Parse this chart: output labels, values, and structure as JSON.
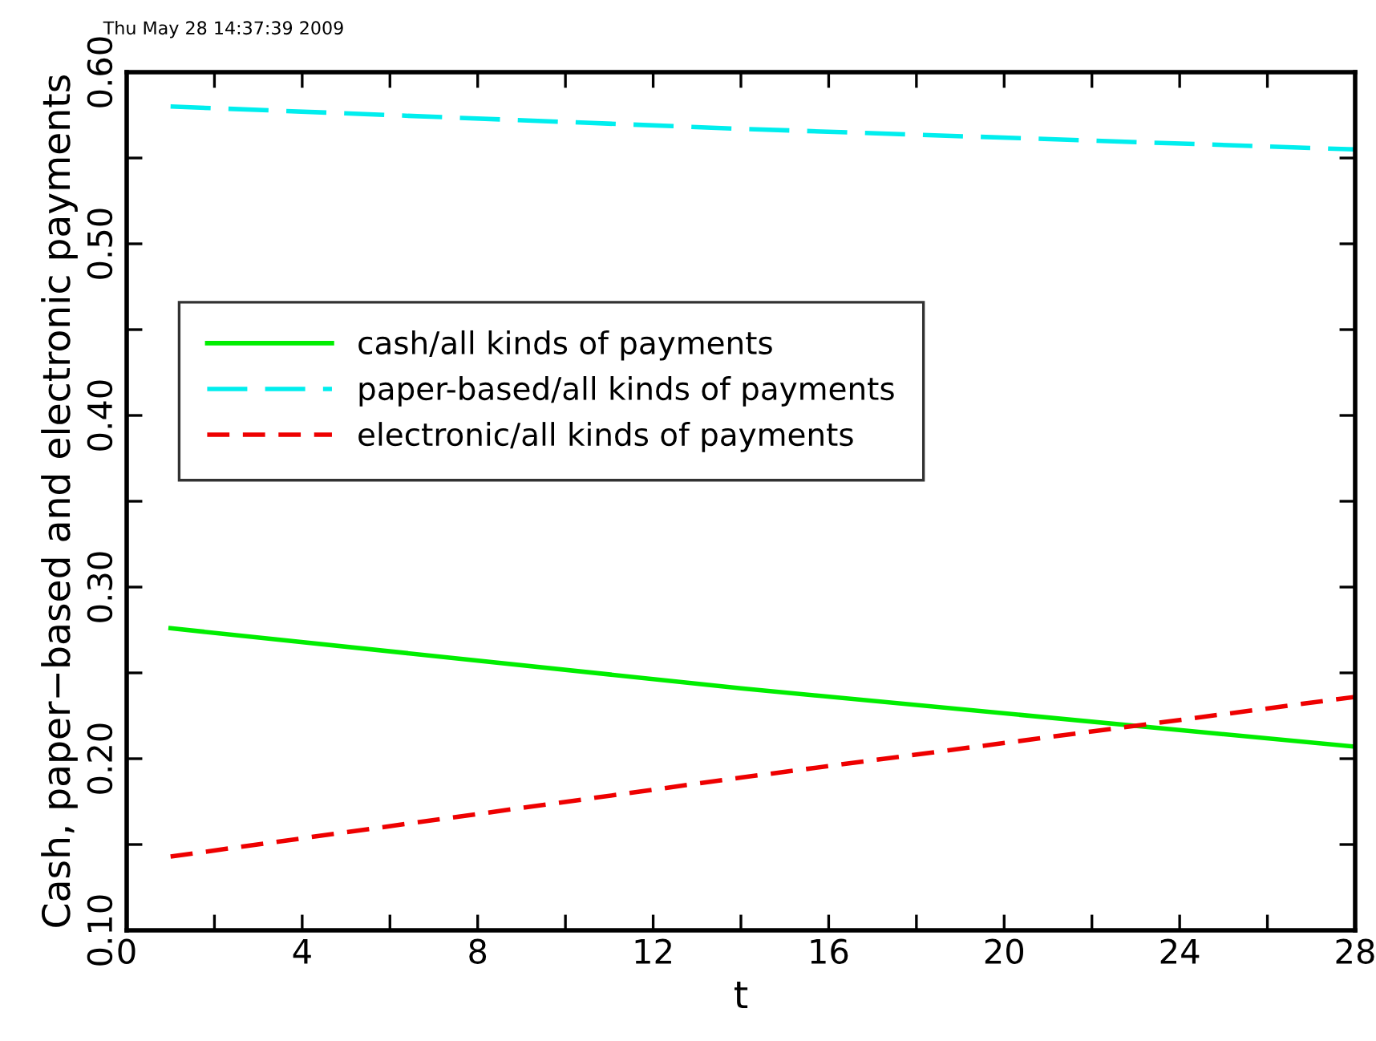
{
  "chart_data": {
    "type": "line",
    "xlabel": "t",
    "ylabel": "Cash, paper−based and electronic payments",
    "annotations": [
      "Thu May 28 14:37:39 2009"
    ],
    "xlim": [
      0,
      28
    ],
    "ylim": [
      0.1,
      0.6
    ],
    "xticks": [
      0,
      {
        "value": 2,
        "label": null
      },
      4,
      {
        "value": 6,
        "label": null
      },
      8,
      {
        "value": 10,
        "label": null
      },
      12,
      {
        "value": 14,
        "label": null
      },
      16,
      {
        "value": 18,
        "label": null
      },
      20,
      {
        "value": 22,
        "label": null
      },
      24,
      {
        "value": 26,
        "label": null
      },
      28
    ],
    "yticks": [
      {
        "value": 0.1,
        "label": "0.10"
      },
      {
        "value": 0.15,
        "label": null
      },
      {
        "value": 0.2,
        "label": "0.20"
      },
      {
        "value": 0.25,
        "label": null
      },
      {
        "value": 0.3,
        "label": "0.30"
      },
      {
        "value": 0.35,
        "label": null
      },
      {
        "value": 0.4,
        "label": "0.40"
      },
      {
        "value": 0.45,
        "label": null
      },
      {
        "value": 0.5,
        "label": "0.50"
      },
      {
        "value": 0.55,
        "label": null
      },
      {
        "value": 0.6,
        "label": "0.60"
      }
    ],
    "legend": "upper left",
    "grid": false,
    "series": [
      {
        "name": "cash/all kinds of payments",
        "color": "#00ee00",
        "line_style": "solid",
        "x": [
          1,
          14,
          28
        ],
        "values": [
          0.276,
          0.241,
          0.207
        ]
      },
      {
        "name": "paper-based/all kinds of payments",
        "color": "#00eeee",
        "line_style": "longdash",
        "x": [
          1,
          14,
          28
        ],
        "values": [
          0.58,
          0.567,
          0.555
        ]
      },
      {
        "name": "electronic/all kinds of payments",
        "color": "#ee0000",
        "line_style": "dashed",
        "x": [
          1,
          14,
          28
        ],
        "values": [
          0.143,
          0.189,
          0.236
        ]
      }
    ]
  }
}
